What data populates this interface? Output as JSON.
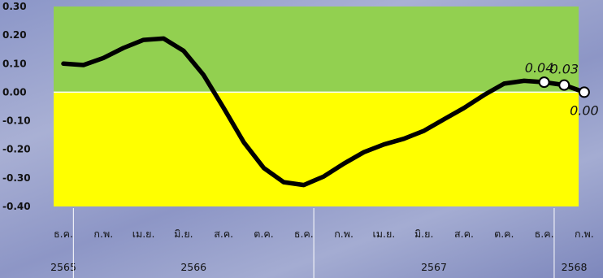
{
  "chart_data": {
    "type": "line",
    "title": "",
    "xlabel": "",
    "ylabel": "",
    "ylim": [
      -0.4,
      0.3
    ],
    "y_ticks": [
      "0.30",
      "0.20",
      "0.10",
      "0.00",
      "-0.10",
      "-0.20",
      "-0.30",
      "-0.40"
    ],
    "x_tick_labels": [
      "ธ.ค.",
      "ก.พ.",
      "เม.ย.",
      "มิ.ย.",
      "ส.ค.",
      "ต.ค.",
      "ธ.ค.",
      "ก.พ.",
      "เม.ย.",
      "มิ.ย.",
      "ส.ค.",
      "ต.ค.",
      "ธ.ค.",
      "ก.พ."
    ],
    "years": [
      {
        "label": "2565",
        "start": 0,
        "end": 0
      },
      {
        "label": "2566",
        "start": 1,
        "end": 12
      },
      {
        "label": "2567",
        "start": 13,
        "end": 24
      },
      {
        "label": "2568",
        "start": 25,
        "end": 26
      }
    ],
    "background_bands": {
      "above_zero": "#92d050",
      "below_zero": "#ffff00"
    },
    "series": [
      {
        "color": "#000000",
        "values": [
          0.1,
          0.095,
          0.12,
          0.155,
          0.183,
          0.188,
          0.145,
          0.06,
          -0.055,
          -0.175,
          -0.265,
          -0.315,
          -0.325,
          -0.295,
          -0.25,
          -0.21,
          -0.183,
          -0.163,
          -0.135,
          -0.095,
          -0.055,
          -0.01,
          0.03,
          0.04,
          0.035,
          0.025,
          0.0
        ],
        "marked_points": [
          {
            "index": 24,
            "label": "0.04"
          },
          {
            "index": 25,
            "label": "0.03"
          },
          {
            "index": 26,
            "label": "0.00"
          }
        ]
      }
    ]
  }
}
